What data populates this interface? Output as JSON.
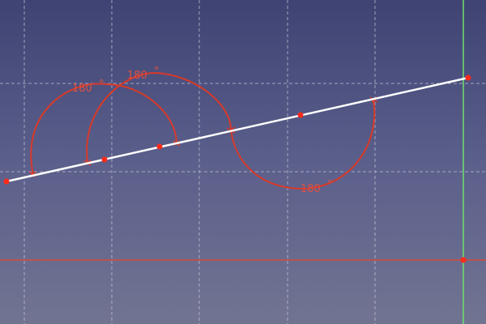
{
  "viewport": {
    "background_top": "#3f4373",
    "background_bottom": "#717491"
  },
  "colors": {
    "grid": "#c8c8d8",
    "constraint": "#d83a2a",
    "constraint_text": "#e05040",
    "sketch_line": "#ffffff",
    "point": "#ff2a1a",
    "axis_x": "#d84a3a",
    "axis_y": "#6fe06f"
  },
  "constraints": {
    "angle_a": {
      "label": "180",
      "symbol": "°"
    },
    "angle_b": {
      "label": "180",
      "symbol": "°"
    },
    "angle_c": {
      "label": "180",
      "symbol": "°"
    }
  }
}
